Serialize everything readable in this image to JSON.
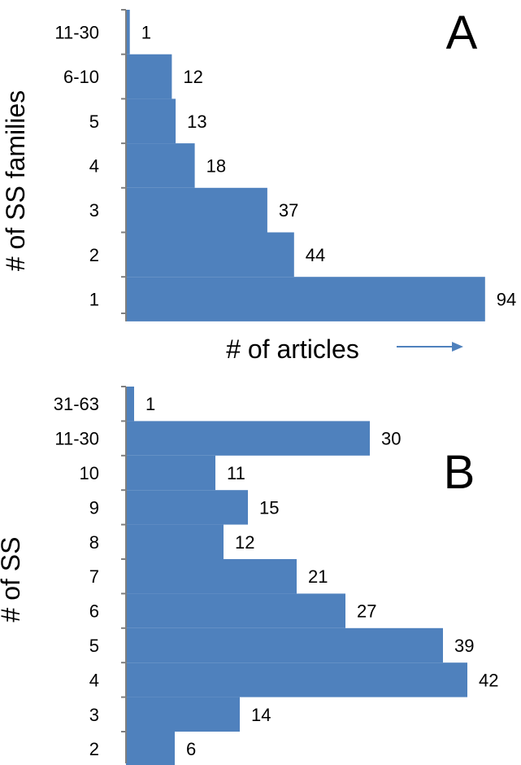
{
  "theme": {
    "bar_color": "#4f81bd",
    "axis_color": "#7f7f7f",
    "arrow_color": "#4f81bd"
  },
  "chart_data": [
    {
      "type": "bar",
      "orientation": "horizontal",
      "panel_letter": "A",
      "ylabel": "# of SS families",
      "xlabel": "# of articles",
      "categories": [
        "11-30",
        "6-10",
        "5",
        "4",
        "3",
        "2",
        "1"
      ],
      "values": [
        1,
        12,
        13,
        18,
        37,
        44,
        94
      ],
      "xlim": [
        0,
        94
      ],
      "grid": false,
      "legend": "none"
    },
    {
      "type": "bar",
      "orientation": "horizontal",
      "panel_letter": "B",
      "ylabel": "# of SS",
      "xlabel": "",
      "categories": [
        "31-63",
        "11-30",
        "10",
        "9",
        "8",
        "7",
        "6",
        "5",
        "4",
        "3",
        "2"
      ],
      "values": [
        1,
        30,
        11,
        15,
        12,
        21,
        27,
        39,
        42,
        14,
        6
      ],
      "xlim": [
        0,
        42
      ],
      "grid": false,
      "legend": "none"
    }
  ]
}
